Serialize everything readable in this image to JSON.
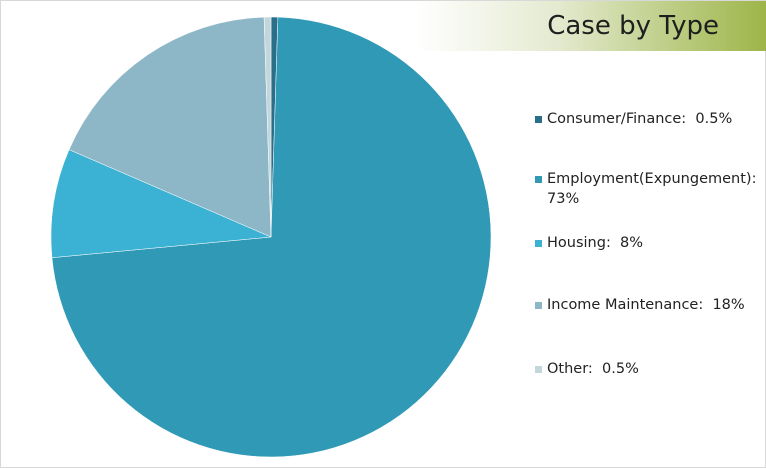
{
  "chart_data": {
    "type": "pie",
    "title": "Case by Type",
    "categories": [
      "Consumer/Finance:",
      "Employment(Expungement):",
      "Housing:",
      "Income Maintenance:",
      "Other:"
    ],
    "values": [
      0.5,
      73,
      8,
      18,
      0.5
    ],
    "value_labels": [
      "0.5%",
      "73%",
      "8%",
      "18%",
      "0.5%"
    ],
    "colors": [
      "#2a6f8a",
      "#2f99b6",
      "#3bb2d3",
      "#8db7c6",
      "#c3d6dc"
    ],
    "legend": "right"
  }
}
